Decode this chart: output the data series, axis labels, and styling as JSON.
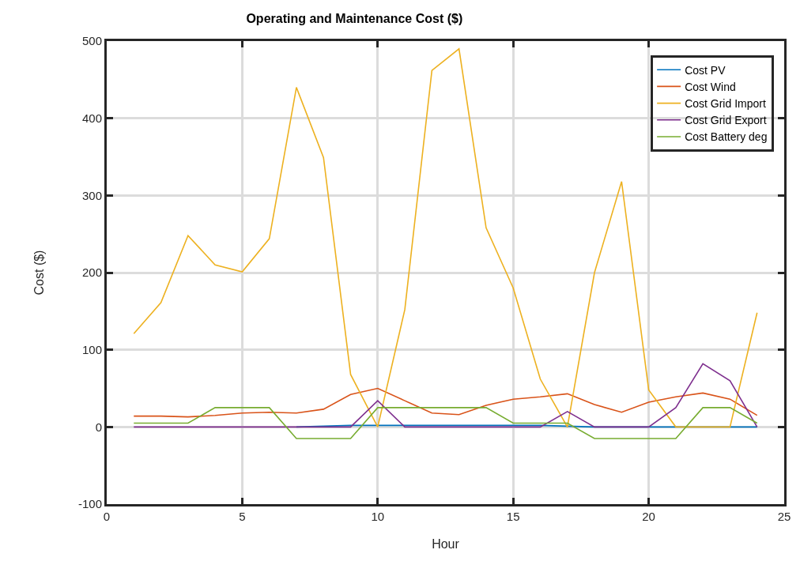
{
  "chart_data": {
    "type": "line",
    "title": "Operating and Maintenance Cost ($)",
    "xlabel": "Hour",
    "ylabel": "Cost ($)",
    "x": [
      1,
      2,
      3,
      4,
      5,
      6,
      7,
      8,
      9,
      10,
      11,
      12,
      13,
      14,
      15,
      16,
      17,
      18,
      19,
      20,
      21,
      22,
      23,
      24
    ],
    "series": [
      {
        "name": "Cost PV",
        "color": "#0072bd",
        "values": [
          null,
          null,
          null,
          null,
          null,
          null,
          0,
          1,
          2,
          2,
          2,
          2,
          2,
          2,
          2,
          2,
          1,
          0,
          0,
          0,
          0,
          0,
          0,
          0
        ]
      },
      {
        "name": "Cost Wind",
        "color": "#d95319",
        "values": [
          14,
          14,
          13,
          15,
          18,
          19,
          18,
          23,
          42,
          50,
          34,
          18,
          16,
          28,
          36,
          39,
          43,
          29,
          19,
          32,
          39,
          44,
          36,
          15
        ]
      },
      {
        "name": "Cost Grid Import",
        "color": "#edb120",
        "values": [
          121,
          161,
          248,
          210,
          201,
          244,
          440,
          349,
          68,
          0,
          152,
          462,
          490,
          258,
          180,
          62,
          0,
          200,
          318,
          48,
          0,
          0,
          0,
          148
        ]
      },
      {
        "name": "Cost Grid Export",
        "color": "#7e2f8e",
        "values": [
          0,
          0,
          0,
          0,
          0,
          0,
          0,
          0,
          0,
          34,
          0,
          0,
          0,
          0,
          0,
          0,
          20,
          0,
          0,
          0,
          25,
          82,
          60,
          0
        ]
      },
      {
        "name": "Cost Battery deg",
        "color": "#77ac30",
        "values": [
          5,
          5,
          5,
          25,
          25,
          25,
          -15,
          -15,
          -15,
          25,
          25,
          25,
          25,
          25,
          5,
          5,
          5,
          -15,
          -15,
          -15,
          -15,
          25,
          25,
          5
        ]
      }
    ],
    "xlim": [
      0,
      25
    ],
    "xticks": [
      0,
      5,
      10,
      15,
      20,
      25
    ],
    "ylim": [
      -100,
      500
    ],
    "yticks": [
      -100,
      0,
      100,
      200,
      300,
      400,
      500
    ],
    "grid": true,
    "legend": "top right",
    "marker": "none",
    "line_style": "solid"
  }
}
